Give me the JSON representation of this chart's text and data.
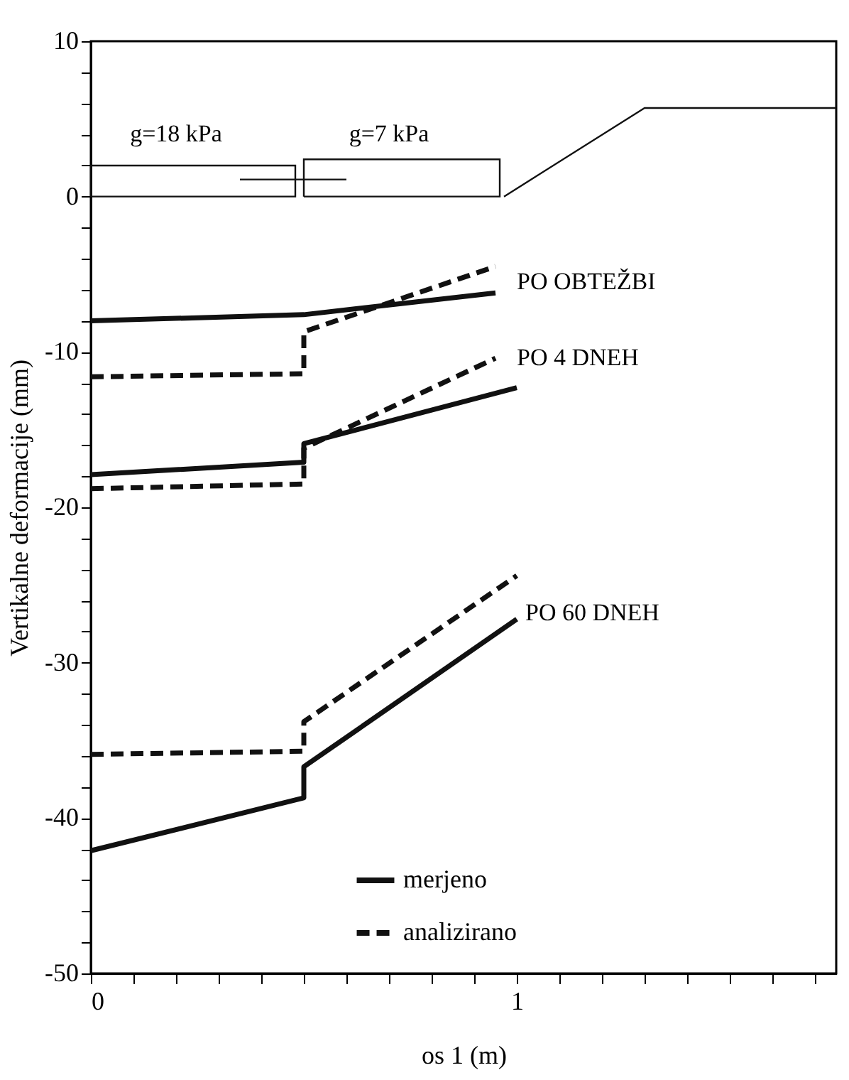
{
  "chart_data": {
    "type": "line",
    "xlabel": "os 1 (m)",
    "ylabel": "Vertikalne deformacije (mm)",
    "xlim": [
      0,
      1.75
    ],
    "ylim": [
      -50,
      10
    ],
    "xticks": [
      0,
      {
        "value": 0.1,
        "label": null
      },
      {
        "value": 0.2,
        "label": null
      },
      {
        "value": 0.3,
        "label": null
      },
      {
        "value": 0.4,
        "label": null
      },
      {
        "value": 0.5,
        "label": null
      },
      {
        "value": 0.6,
        "label": null
      },
      {
        "value": 0.7,
        "label": null
      },
      {
        "value": 0.8,
        "label": null
      },
      {
        "value": 0.9,
        "label": null
      },
      1,
      {
        "value": 1.1,
        "label": null
      },
      {
        "value": 1.2,
        "label": null
      },
      {
        "value": 1.3,
        "label": null
      },
      {
        "value": 1.4,
        "label": null
      },
      {
        "value": 1.5,
        "label": null
      },
      {
        "value": 1.6,
        "label": null
      },
      {
        "value": 1.7,
        "label": null
      }
    ],
    "yticks": [
      -50,
      {
        "value": -48,
        "label": null
      },
      {
        "value": -46,
        "label": null
      },
      {
        "value": -44,
        "label": null
      },
      {
        "value": -42,
        "label": null
      },
      -40,
      {
        "value": -38,
        "label": null
      },
      {
        "value": -36,
        "label": null
      },
      {
        "value": -34,
        "label": null
      },
      {
        "value": -32,
        "label": null
      },
      -30,
      {
        "value": -28,
        "label": null
      },
      {
        "value": -26,
        "label": null
      },
      {
        "value": -24,
        "label": null
      },
      {
        "value": -22,
        "label": null
      },
      -20,
      {
        "value": -18,
        "label": null
      },
      {
        "value": -16,
        "label": null
      },
      {
        "value": -14,
        "label": null
      },
      {
        "value": -12,
        "label": null
      },
      -10,
      {
        "value": -8,
        "label": null
      },
      {
        "value": -6,
        "label": null
      },
      {
        "value": -4,
        "label": null
      },
      {
        "value": -2,
        "label": null
      },
      0,
      {
        "value": 2,
        "label": null
      },
      {
        "value": 4,
        "label": null
      },
      {
        "value": 6,
        "label": null
      },
      {
        "value": 8,
        "label": null
      },
      10
    ],
    "grid": false,
    "legend": "bottom",
    "marker": "none",
    "series": [
      {
        "name": "merjeno",
        "color": "#111111",
        "line_style": "solid",
        "x": [
          0,
          0.5,
          0.95,
          null,
          0,
          0.5,
          0.5,
          1.0,
          null,
          0,
          0.5,
          0.5,
          1.0
        ],
        "values": [
          -8,
          -7.6,
          -6.2,
          null,
          -17.9,
          -17.1,
          -15.9,
          -12.3,
          null,
          -42.1,
          -38.7,
          -36.7,
          -27.2
        ]
      },
      {
        "name": "analizirano",
        "color": "#111111",
        "line_style": "dashed",
        "x": [
          0,
          0.5,
          0.5,
          0.95,
          null,
          0,
          0.5,
          0.5,
          0.95,
          null,
          0,
          0.5,
          0.5,
          1.0
        ],
        "values": [
          -11.6,
          -11.4,
          -8.7,
          -4.5,
          null,
          -18.8,
          -18.5,
          -16.2,
          -10.4,
          null,
          -35.9,
          -35.7,
          -33.8,
          -24.4
        ]
      },
      {
        "color": "#111111",
        "line_style": "solid",
        "x": [
          0.97,
          1.3,
          1.75
        ],
        "values": [
          0,
          5.7,
          5.7
        ]
      }
    ],
    "annotations": [
      "PO OBTEŽBI",
      "PO 4 DNEH",
      "PO 60 DNEH",
      "g=18 kPa",
      "g=7 kPa"
    ]
  }
}
